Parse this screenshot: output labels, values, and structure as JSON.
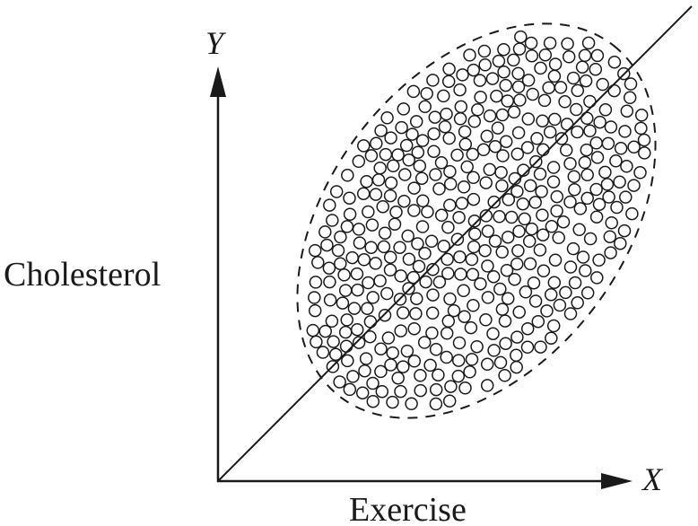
{
  "diagram": {
    "y_axis": {
      "symbol": "Y",
      "name": "Cholesterol"
    },
    "x_axis": {
      "symbol": "X",
      "name": "Exercise"
    },
    "elements": {
      "scatter": {
        "marker": "open-circle",
        "approx_count": 420,
        "boundary": "dashed-ellipse"
      },
      "trend_line": {
        "style": "solid",
        "direction": "positive-slope"
      }
    },
    "colors": {
      "ink": "#1a1a1a",
      "background": "#ffffff"
    }
  }
}
